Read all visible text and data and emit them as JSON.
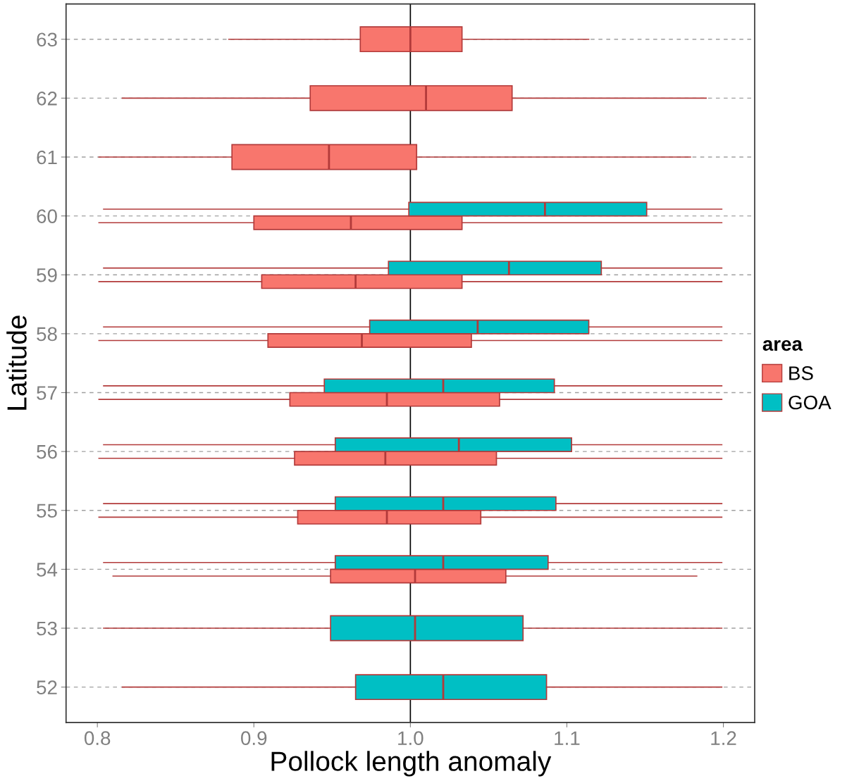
{
  "chart_data": {
    "type": "box",
    "orientation": "horizontal",
    "xlabel": "Pollock length anomaly",
    "ylabel": "Latitude",
    "legend_title": "area",
    "legend": "right",
    "grid": "y",
    "categories": [
      "63",
      "62",
      "61",
      "60",
      "59",
      "58",
      "57",
      "56",
      "55",
      "54",
      "53",
      "52"
    ],
    "xlim": [
      0.78,
      1.22
    ],
    "xticks": [
      0.8,
      0.9,
      {
        "value": 1.0,
        "label": "1.0"
      },
      1.1,
      1.2
    ],
    "ref_lines": [
      {
        "axis": "x",
        "value": 1.0,
        "color": "#000000"
      }
    ],
    "series": [
      {
        "name": "BS",
        "color": "#f8766d",
        "boxes": [
          {
            "low": 0.884,
            "q1": 0.968,
            "median": 1.0,
            "q3": 1.033,
            "high": 1.114
          },
          {
            "low": 0.816,
            "q1": 0.936,
            "median": 1.01,
            "q3": 1.065,
            "high": 1.189
          },
          {
            "low": 0.801,
            "q1": 0.886,
            "median": 0.948,
            "q3": 1.004,
            "high": 1.179
          },
          {
            "low": 0.801,
            "q1": 0.9,
            "median": 0.962,
            "q3": 1.033,
            "high": 1.199
          },
          {
            "low": 0.801,
            "q1": 0.905,
            "median": 0.965,
            "q3": 1.033,
            "high": 1.199
          },
          {
            "low": 0.801,
            "q1": 0.909,
            "median": 0.969,
            "q3": 1.039,
            "high": 1.199
          },
          {
            "low": 0.801,
            "q1": 0.923,
            "median": 0.985,
            "q3": 1.057,
            "high": 1.199
          },
          {
            "low": 0.801,
            "q1": 0.926,
            "median": 0.984,
            "q3": 1.055,
            "high": 1.199
          },
          {
            "low": 0.801,
            "q1": 0.928,
            "median": 0.985,
            "q3": 1.045,
            "high": 1.199
          },
          {
            "low": 0.81,
            "q1": 0.949,
            "median": 1.003,
            "q3": 1.061,
            "high": 1.183
          },
          null,
          null
        ]
      },
      {
        "name": "GOA",
        "color": "#00bfc4",
        "boxes": [
          null,
          null,
          null,
          {
            "low": 0.804,
            "q1": 0.999,
            "median": 1.086,
            "q3": 1.151,
            "high": 1.199
          },
          {
            "low": 0.804,
            "q1": 0.986,
            "median": 1.063,
            "q3": 1.122,
            "high": 1.199
          },
          {
            "low": 0.804,
            "q1": 0.974,
            "median": 1.043,
            "q3": 1.114,
            "high": 1.199
          },
          {
            "low": 0.804,
            "q1": 0.945,
            "median": 1.021,
            "q3": 1.092,
            "high": 1.199
          },
          {
            "low": 0.804,
            "q1": 0.952,
            "median": 1.031,
            "q3": 1.103,
            "high": 1.199
          },
          {
            "low": 0.804,
            "q1": 0.952,
            "median": 1.021,
            "q3": 1.093,
            "high": 1.199
          },
          {
            "low": 0.804,
            "q1": 0.952,
            "median": 1.021,
            "q3": 1.088,
            "high": 1.199
          },
          {
            "low": 0.804,
            "q1": 0.949,
            "median": 1.003,
            "q3": 1.072,
            "high": 1.199
          },
          {
            "low": 0.816,
            "q1": 0.965,
            "median": 1.021,
            "q3": 1.087,
            "high": 1.199
          }
        ]
      }
    ]
  }
}
